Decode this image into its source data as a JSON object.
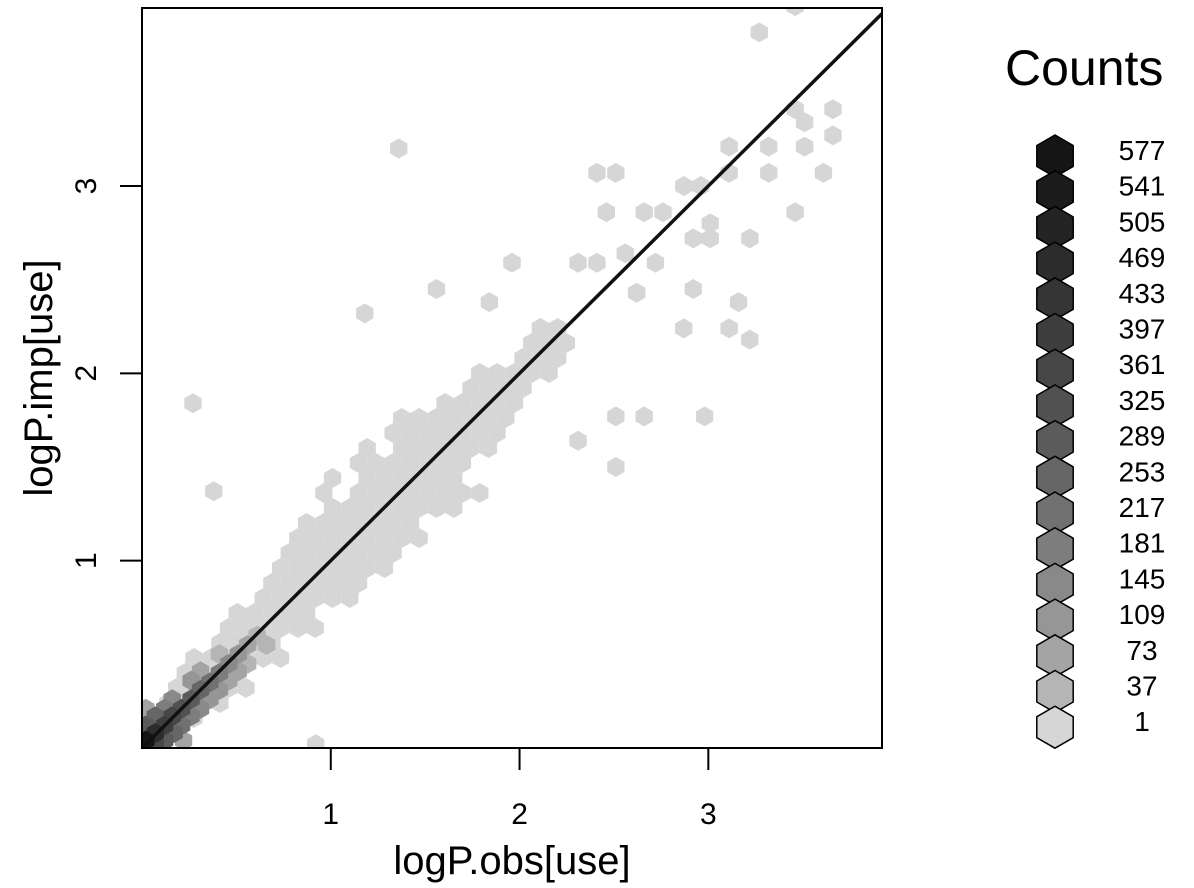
{
  "chart_data": {
    "type": "hexbin",
    "xlabel": "logP.obs[use]",
    "ylabel": "logP.imp[use]",
    "xlim": [
      0,
      3.92
    ],
    "ylim": [
      0,
      3.95
    ],
    "x_ticks": [
      1,
      2,
      3
    ],
    "y_ticks": [
      1,
      2,
      3
    ],
    "reference_line": {
      "x": [
        0,
        3.92
      ],
      "y": [
        0,
        3.92
      ]
    },
    "legend": {
      "title": "Counts",
      "placement": "right",
      "levels": [
        "577",
        "541",
        "505",
        "469",
        "433",
        "397",
        "361",
        "325",
        "289",
        "253",
        "217",
        "181",
        "145",
        "109",
        "73",
        "37",
        "1"
      ],
      "colors": [
        "#151515",
        "#1c1c1c",
        "#242424",
        "#2c2c2c",
        "#353535",
        "#3e3e3e",
        "#474747",
        "#515151",
        "#5b5b5b",
        "#666666",
        "#717171",
        "#7d7d7d",
        "#898989",
        "#969696",
        "#a4a4a4",
        "#b5b5b5",
        "#d6d6d6"
      ]
    },
    "cells": [
      {
        "x": 0.02,
        "y": 0.04,
        "count": 577
      },
      {
        "x": 0.07,
        "y": 0.08,
        "count": 469
      },
      {
        "x": 0.12,
        "y": 0.12,
        "count": 397
      },
      {
        "x": 0.16,
        "y": 0.17,
        "count": 361
      },
      {
        "x": 0.21,
        "y": 0.21,
        "count": 325
      },
      {
        "x": 0.26,
        "y": 0.26,
        "count": 289
      },
      {
        "x": 0.31,
        "y": 0.31,
        "count": 253
      },
      {
        "x": 0.36,
        "y": 0.35,
        "count": 217
      },
      {
        "x": 0.41,
        "y": 0.4,
        "count": 181
      },
      {
        "x": 0.46,
        "y": 0.45,
        "count": 145
      },
      {
        "x": 0.51,
        "y": 0.5,
        "count": 109
      },
      {
        "x": 0.56,
        "y": 0.55,
        "count": 73
      },
      {
        "x": 0.61,
        "y": 0.6,
        "count": 37
      },
      {
        "x": 0.07,
        "y": 0.02,
        "count": 361
      },
      {
        "x": 0.12,
        "y": 0.04,
        "count": 289
      },
      {
        "x": 0.02,
        "y": 0.12,
        "count": 289
      },
      {
        "x": 0.17,
        "y": 0.08,
        "count": 253
      },
      {
        "x": 0.07,
        "y": 0.17,
        "count": 253
      },
      {
        "x": 0.21,
        "y": 0.12,
        "count": 217
      },
      {
        "x": 0.12,
        "y": 0.21,
        "count": 181
      },
      {
        "x": 0.26,
        "y": 0.17,
        "count": 181
      },
      {
        "x": 0.16,
        "y": 0.26,
        "count": 145
      },
      {
        "x": 0.31,
        "y": 0.21,
        "count": 145
      },
      {
        "x": 0.36,
        "y": 0.26,
        "count": 109
      },
      {
        "x": 0.26,
        "y": 0.36,
        "count": 109
      },
      {
        "x": 0.41,
        "y": 0.31,
        "count": 109
      },
      {
        "x": 0.46,
        "y": 0.36,
        "count": 73
      },
      {
        "x": 0.31,
        "y": 0.41,
        "count": 73
      },
      {
        "x": 0.51,
        "y": 0.41,
        "count": 73
      },
      {
        "x": 0.56,
        "y": 0.45,
        "count": 37
      },
      {
        "x": 0.66,
        "y": 0.55,
        "count": 37
      },
      {
        "x": 0.41,
        "y": 0.5,
        "count": 37
      },
      {
        "x": 0.22,
        "y": 0.04,
        "count": 73
      },
      {
        "x": 0.02,
        "y": 0.21,
        "count": 73
      }
    ],
    "sparse_cells": [
      {
        "x": 1.36,
        "y": 3.2
      },
      {
        "x": 0.27,
        "y": 1.84
      },
      {
        "x": 0.38,
        "y": 1.37
      },
      {
        "x": 0.92,
        "y": 0.02
      },
      {
        "x": 2.41,
        "y": 3.07
      },
      {
        "x": 2.51,
        "y": 3.07
      },
      {
        "x": 2.46,
        "y": 2.86
      },
      {
        "x": 2.56,
        "y": 2.64
      },
      {
        "x": 2.66,
        "y": 2.86
      },
      {
        "x": 2.76,
        "y": 2.86
      },
      {
        "x": 2.72,
        "y": 2.59
      },
      {
        "x": 2.62,
        "y": 2.43
      },
      {
        "x": 2.87,
        "y": 3.0
      },
      {
        "x": 2.96,
        "y": 3.0
      },
      {
        "x": 3.01,
        "y": 2.72
      },
      {
        "x": 2.92,
        "y": 2.72
      },
      {
        "x": 2.87,
        "y": 2.24
      },
      {
        "x": 2.92,
        "y": 2.45
      },
      {
        "x": 3.11,
        "y": 2.24
      },
      {
        "x": 3.16,
        "y": 2.38
      },
      {
        "x": 3.22,
        "y": 2.18
      },
      {
        "x": 3.11,
        "y": 3.07
      },
      {
        "x": 3.11,
        "y": 3.21
      },
      {
        "x": 3.22,
        "y": 2.72
      },
      {
        "x": 3.01,
        "y": 2.8
      },
      {
        "x": 3.32,
        "y": 3.07
      },
      {
        "x": 3.32,
        "y": 3.21
      },
      {
        "x": 3.46,
        "y": 2.86
      },
      {
        "x": 3.51,
        "y": 3.21
      },
      {
        "x": 3.46,
        "y": 3.41
      },
      {
        "x": 3.51,
        "y": 3.34
      },
      {
        "x": 3.61,
        "y": 3.07
      },
      {
        "x": 3.66,
        "y": 3.27
      },
      {
        "x": 3.66,
        "y": 3.41
      },
      {
        "x": 3.27,
        "y": 3.82
      },
      {
        "x": 3.46,
        "y": 3.96
      },
      {
        "x": 2.51,
        "y": 1.77
      },
      {
        "x": 2.66,
        "y": 1.77
      },
      {
        "x": 2.51,
        "y": 1.5
      },
      {
        "x": 2.98,
        "y": 1.77
      },
      {
        "x": 2.31,
        "y": 1.64
      },
      {
        "x": 1.18,
        "y": 2.32
      },
      {
        "x": 1.56,
        "y": 2.45
      },
      {
        "x": 1.84,
        "y": 2.38
      },
      {
        "x": 1.96,
        "y": 2.59
      },
      {
        "x": 2.31,
        "y": 2.59
      },
      {
        "x": 2.41,
        "y": 2.59
      }
    ]
  }
}
